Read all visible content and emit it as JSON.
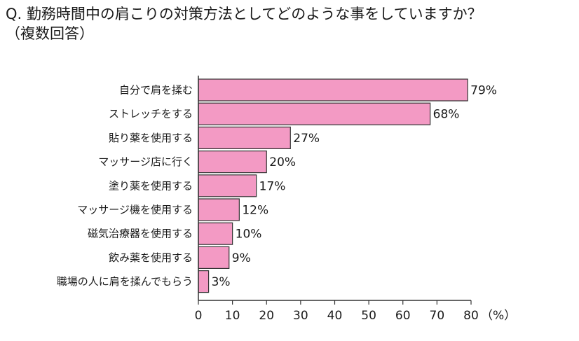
{
  "title_line1": "Q. 勤務時間中の肩こりの対策方法としてどのような事をしていますか？",
  "title_line2": "（複数回答）",
  "chart_data": {
    "type": "bar",
    "orientation": "horizontal",
    "categories": [
      "自分で肩を揉む",
      "ストレッチをする",
      "貼り薬を使用する",
      "マッサージ店に行く",
      "塗り薬を使用する",
      "マッサージ機を使用する",
      "磁気治療器を使用する",
      "飲み薬を使用する",
      "職場の人に肩を揉んでもらう"
    ],
    "values": [
      79,
      68,
      27,
      20,
      17,
      12,
      10,
      9,
      3
    ],
    "value_labels": [
      "79%",
      "68%",
      "27%",
      "20%",
      "17%",
      "12%",
      "10%",
      "9%",
      "3%"
    ],
    "xlim": [
      0,
      80
    ],
    "xticks": [
      0,
      10,
      20,
      30,
      40,
      50,
      60,
      70,
      80
    ],
    "unit_label": "（%）",
    "bar_color": "#f39ac4",
    "bar_edge_color": "#333333",
    "grid": false
  }
}
